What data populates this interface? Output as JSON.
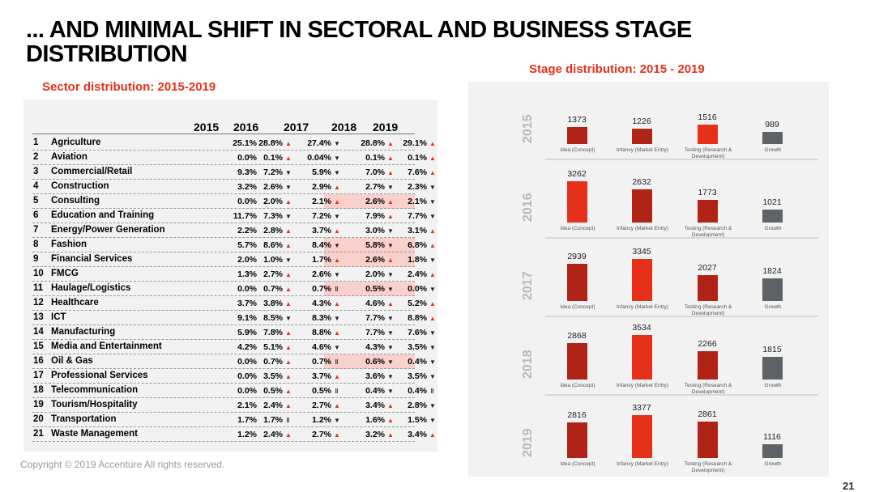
{
  "title": {
    "line1": "... AND MINIMAL SHIFT IN SECTORAL AND BUSINESS STAGE",
    "line2": "DISTRIBUTION"
  },
  "sector_subtitle": "Sector distribution: 2015-2019",
  "stage_subtitle": "Stage distribution: 2015 - 2019",
  "years": [
    "2015",
    "2016",
    "2017",
    "2018",
    "2019"
  ],
  "sectors": [
    {
      "num": "1",
      "name": "Agriculture",
      "v": [
        "25.1%",
        "28.8%",
        "27.4%",
        "28.8%",
        "29.1%"
      ],
      "a": [
        "",
        "up",
        "dn",
        "up",
        "up"
      ],
      "hl": false
    },
    {
      "num": "2",
      "name": "Aviation",
      "v": [
        "0.0%",
        "0.1%",
        "0.04%",
        "0.1%",
        "0.1%"
      ],
      "a": [
        "",
        "up",
        "dn",
        "up",
        "up"
      ],
      "hl": false
    },
    {
      "num": "3",
      "name": "Commercial/Retail",
      "v": [
        "9.3%",
        "7.2%",
        "5.9%",
        "7.0%",
        "7.6%"
      ],
      "a": [
        "",
        "dn",
        "dn",
        "up",
        "up"
      ],
      "hl": false
    },
    {
      "num": "4",
      "name": "Construction",
      "v": [
        "3.2%",
        "2.6%",
        "2.9%",
        "2.7%",
        "2.3%"
      ],
      "a": [
        "",
        "dn",
        "up",
        "dn",
        "dn"
      ],
      "hl": false
    },
    {
      "num": "5",
      "name": "Consulting",
      "v": [
        "0.0%",
        "2.0%",
        "2.1%",
        "2.6%",
        "2.1%"
      ],
      "a": [
        "",
        "up",
        "up",
        "up",
        "dn"
      ],
      "hl": true
    },
    {
      "num": "6",
      "name": "Education and Training",
      "v": [
        "11.7%",
        "7.3%",
        "7.2%",
        "7.9%",
        "7.7%"
      ],
      "a": [
        "",
        "dn",
        "dn",
        "up",
        "dn"
      ],
      "hl": false
    },
    {
      "num": "7",
      "name": "Energy/Power Generation",
      "v": [
        "2.2%",
        "2.8%",
        "3.7%",
        "3.0%",
        "3.1%"
      ],
      "a": [
        "",
        "up",
        "up",
        "dn",
        "up"
      ],
      "hl": false
    },
    {
      "num": "8",
      "name": "Fashion",
      "v": [
        "5.7%",
        "8.6%",
        "8.4%",
        "5.8%",
        "6.8%"
      ],
      "a": [
        "",
        "up",
        "dn",
        "dn",
        "up"
      ],
      "hl": true
    },
    {
      "num": "9",
      "name": "Financial Services",
      "v": [
        "2.0%",
        "1.0%",
        "1.7%",
        "2.6%",
        "1.8%"
      ],
      "a": [
        "",
        "dn",
        "up",
        "up",
        "dn"
      ],
      "hl": true
    },
    {
      "num": "10",
      "name": "FMCG",
      "v": [
        "1.3%",
        "2.7%",
        "2.6%",
        "2.0%",
        "2.4%"
      ],
      "a": [
        "",
        "up",
        "dn",
        "dn",
        "up"
      ],
      "hl": false
    },
    {
      "num": "11",
      "name": "Haulage/Logistics",
      "v": [
        "0.0%",
        "0.7%",
        "0.7%",
        "0.5%",
        "0.0%"
      ],
      "a": [
        "",
        "up",
        "eq",
        "dn",
        "dn"
      ],
      "hl": true
    },
    {
      "num": "12",
      "name": "Healthcare",
      "v": [
        "3.7%",
        "3.8%",
        "4.3%",
        "4.6%",
        "5.2%"
      ],
      "a": [
        "",
        "up",
        "up",
        "up",
        "up"
      ],
      "hl": false
    },
    {
      "num": "13",
      "name": "ICT",
      "v": [
        "9.1%",
        "8.5%",
        "8.3%",
        "7.7%",
        "8.8%"
      ],
      "a": [
        "",
        "dn",
        "dn",
        "dn",
        "up"
      ],
      "hl": false
    },
    {
      "num": "14",
      "name": "Manufacturing",
      "v": [
        "5.9%",
        "7.8%",
        "8.8%",
        "7.7%",
        "7.6%"
      ],
      "a": [
        "",
        "up",
        "up",
        "dn",
        "dn"
      ],
      "hl": false
    },
    {
      "num": "15",
      "name": "Media and Entertainment",
      "v": [
        "4.2%",
        "5.1%",
        "4.6%",
        "4.3%",
        "3.5%"
      ],
      "a": [
        "",
        "up",
        "dn",
        "dn",
        "dn"
      ],
      "hl": false
    },
    {
      "num": "16",
      "name": "Oil & Gas",
      "v": [
        "0.0%",
        "0.7%",
        "0.7%",
        "0.6%",
        "0.4%"
      ],
      "a": [
        "",
        "up",
        "eq",
        "dn",
        "dn"
      ],
      "hl": true
    },
    {
      "num": "17",
      "name": "Professional Services",
      "v": [
        "0.0%",
        "3.5%",
        "3.7%",
        "3.6%",
        "3.5%"
      ],
      "a": [
        "",
        "up",
        "up",
        "dn",
        "dn"
      ],
      "hl": false
    },
    {
      "num": "18",
      "name": "Telecommunication",
      "v": [
        "0.0%",
        "0.5%",
        "0.5%",
        "0.4%",
        "0.4%"
      ],
      "a": [
        "",
        "up",
        "eq",
        "dn",
        "eq"
      ],
      "hl": false
    },
    {
      "num": "19",
      "name": "Tourism/Hospitality",
      "v": [
        "2.1%",
        "2.4%",
        "2.7%",
        "3.4%",
        "2.8%"
      ],
      "a": [
        "",
        "up",
        "up",
        "up",
        "dn"
      ],
      "hl": false
    },
    {
      "num": "20",
      "name": "Transportation",
      "v": [
        "1.7%",
        "1.7%",
        "1.2%",
        "1.6%",
        "1.5%"
      ],
      "a": [
        "",
        "eq",
        "dn",
        "up",
        "dn"
      ],
      "hl": false
    },
    {
      "num": "21",
      "name": "Waste Management",
      "v": [
        "1.2%",
        "2.4%",
        "2.7%",
        "3.2%",
        "3.4%"
      ],
      "a": [
        "",
        "up",
        "up",
        "up",
        "up"
      ],
      "hl": false
    }
  ],
  "chart_data": {
    "type": "bar",
    "title": "Stage distribution: 2015 - 2019",
    "categories": [
      "Idea (Concept)",
      "Infancy (Market Entry)",
      "Testing (Research & Development)",
      "Growth"
    ],
    "series": [
      {
        "name": "2015",
        "values": [
          1373,
          1226,
          1516,
          989
        ]
      },
      {
        "name": "2016",
        "values": [
          3262,
          2632,
          1773,
          1021
        ]
      },
      {
        "name": "2017",
        "values": [
          2939,
          3345,
          2027,
          1824
        ]
      },
      {
        "name": "2018",
        "values": [
          2868,
          3534,
          2266,
          1815
        ]
      },
      {
        "name": "2019",
        "values": [
          2816,
          3377,
          2861,
          1116
        ]
      }
    ],
    "colors": [
      "#b02418",
      "#e5311a",
      "#5f6367"
    ]
  },
  "copyright": "Copyright © 2019 Accenture  All rights reserved.",
  "page_number": "21"
}
